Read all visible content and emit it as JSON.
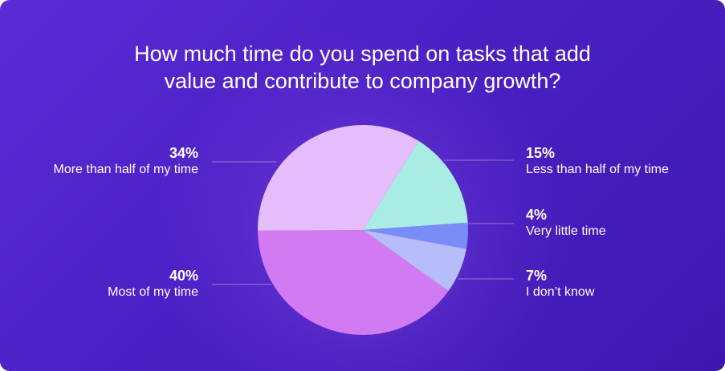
{
  "chart_data": {
    "type": "pie",
    "title_lines": [
      "How much time do you spend on tasks that add",
      "value and contribute to company growth?"
    ],
    "slices": [
      {
        "label": "More than half of my time",
        "value": 34,
        "percent_label": "34%",
        "color": "#e6bdfc"
      },
      {
        "label": "Less than half of my time",
        "value": 15,
        "percent_label": "15%",
        "color": "#a9ece4"
      },
      {
        "label": "Very little time",
        "value": 4,
        "percent_label": "4%",
        "color": "#7a8cf7"
      },
      {
        "label": "I don’t know",
        "value": 7,
        "percent_label": "7%",
        "color": "#b7bdf9"
      },
      {
        "label": "Most of my time",
        "value": 40,
        "percent_label": "40%",
        "color": "#d17af2"
      }
    ],
    "legend": "callout labels"
  }
}
